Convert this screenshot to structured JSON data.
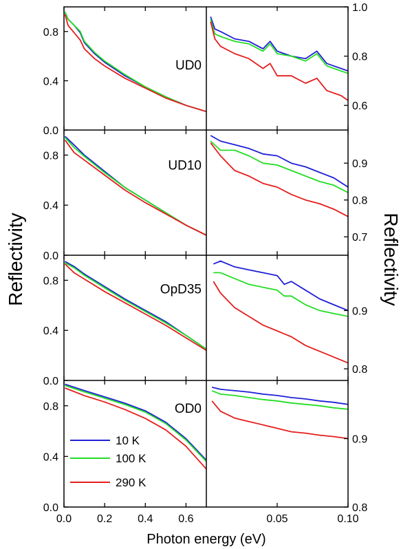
{
  "chart_data": {
    "type": "line",
    "ylabel_left": "Reflectivity",
    "ylabel_right": "Reflectivity",
    "xlabel": "Photon energy (eV)",
    "legend": {
      "position": "bottom-left of lowest left panel",
      "entries": [
        {
          "name": " 10 K",
          "color": "#1f1fd6"
        },
        {
          "name": "100 K",
          "color": "#22dd22"
        },
        {
          "name": "290 K",
          "color": "#e51c1c"
        }
      ]
    },
    "left_axis": {
      "xlim": [
        0.0,
        0.7
      ],
      "xticks": [
        0.0,
        0.2,
        0.4,
        0.6
      ],
      "xtick_labels": [
        "0.0",
        "0.2",
        "0.4",
        "0.6"
      ]
    },
    "right_axis": {
      "xlim": [
        0.0,
        0.1
      ],
      "xticks": [
        0.05,
        0.1
      ],
      "xtick_labels": [
        "0.05",
        "0.10"
      ]
    },
    "panels": [
      {
        "label": "UD0",
        "left": {
          "ylim": [
            0.0,
            1.0
          ],
          "yticks": [
            0.0,
            0.4,
            0.8
          ],
          "ytick_labels": [
            "0.0",
            "0.4",
            "0.8"
          ],
          "series": [
            {
              "color": "#1f1fd6",
              "x": [
                0.005,
                0.02,
                0.05,
                0.08,
                0.1,
                0.15,
                0.2,
                0.3,
                0.4,
                0.5,
                0.6,
                0.7
              ],
              "y": [
                0.96,
                0.9,
                0.85,
                0.79,
                0.71,
                0.62,
                0.55,
                0.44,
                0.35,
                0.27,
                0.2,
                0.15
              ]
            },
            {
              "color": "#22dd22",
              "x": [
                0.005,
                0.02,
                0.05,
                0.08,
                0.1,
                0.15,
                0.2,
                0.3,
                0.4,
                0.5,
                0.6,
                0.7
              ],
              "y": [
                0.96,
                0.9,
                0.85,
                0.8,
                0.72,
                0.63,
                0.56,
                0.45,
                0.35,
                0.27,
                0.2,
                0.15
              ]
            },
            {
              "color": "#e51c1c",
              "x": [
                0.005,
                0.02,
                0.05,
                0.08,
                0.1,
                0.15,
                0.2,
                0.3,
                0.4,
                0.5,
                0.6,
                0.7
              ],
              "y": [
                0.94,
                0.85,
                0.79,
                0.73,
                0.66,
                0.58,
                0.52,
                0.42,
                0.34,
                0.26,
                0.2,
                0.15
              ]
            }
          ]
        },
        "right": {
          "ylim": [
            0.5,
            1.0
          ],
          "yticks": [
            0.6,
            0.8,
            1.0
          ],
          "ytick_labels": [
            "0.6",
            "0.8",
            "1.0"
          ],
          "series": [
            {
              "color": "#1f1fd6",
              "x": [
                0.003,
                0.006,
                0.01,
                0.02,
                0.03,
                0.04,
                0.045,
                0.05,
                0.06,
                0.07,
                0.078,
                0.085,
                0.095,
                0.1
              ],
              "y": [
                0.96,
                0.91,
                0.9,
                0.87,
                0.86,
                0.83,
                0.86,
                0.82,
                0.8,
                0.79,
                0.82,
                0.77,
                0.75,
                0.74
              ]
            },
            {
              "color": "#22dd22",
              "x": [
                0.003,
                0.006,
                0.01,
                0.02,
                0.03,
                0.04,
                0.045,
                0.05,
                0.06,
                0.07,
                0.078,
                0.085,
                0.095,
                0.1
              ],
              "y": [
                0.95,
                0.89,
                0.88,
                0.86,
                0.85,
                0.82,
                0.85,
                0.81,
                0.8,
                0.78,
                0.81,
                0.76,
                0.74,
                0.73
              ]
            },
            {
              "color": "#e51c1c",
              "x": [
                0.003,
                0.006,
                0.01,
                0.02,
                0.03,
                0.04,
                0.045,
                0.05,
                0.06,
                0.07,
                0.078,
                0.085,
                0.095,
                0.1
              ],
              "y": [
                0.94,
                0.87,
                0.84,
                0.81,
                0.79,
                0.75,
                0.77,
                0.72,
                0.72,
                0.69,
                0.71,
                0.66,
                0.64,
                0.62
              ]
            }
          ]
        }
      },
      {
        "label": "UD10",
        "left": {
          "ylim": [
            0.0,
            1.0
          ],
          "yticks": [
            0.0,
            0.4,
            0.8
          ],
          "ytick_labels": [
            "0.0",
            "0.4",
            "0.8"
          ],
          "series": [
            {
              "color": "#1f1fd6",
              "x": [
                0.005,
                0.05,
                0.1,
                0.2,
                0.3,
                0.4,
                0.5,
                0.6,
                0.7
              ],
              "y": [
                0.95,
                0.88,
                0.8,
                0.67,
                0.54,
                0.44,
                0.34,
                0.24,
                0.16
              ]
            },
            {
              "color": "#22dd22",
              "x": [
                0.005,
                0.05,
                0.1,
                0.2,
                0.3,
                0.4,
                0.5,
                0.6,
                0.7
              ],
              "y": [
                0.94,
                0.86,
                0.79,
                0.66,
                0.54,
                0.44,
                0.34,
                0.24,
                0.16
              ]
            },
            {
              "color": "#e51c1c",
              "x": [
                0.005,
                0.05,
                0.1,
                0.2,
                0.3,
                0.4,
                0.5,
                0.6,
                0.7
              ],
              "y": [
                0.92,
                0.82,
                0.76,
                0.64,
                0.52,
                0.42,
                0.33,
                0.24,
                0.16
              ]
            }
          ]
        },
        "right": {
          "ylim": [
            0.65,
            0.99
          ],
          "yticks": [
            0.7,
            0.8,
            0.9
          ],
          "ytick_labels": [
            "0.7",
            "0.8",
            "0.9"
          ],
          "series": [
            {
              "color": "#1f1fd6",
              "x": [
                0.003,
                0.01,
                0.02,
                0.03,
                0.04,
                0.05,
                0.06,
                0.07,
                0.08,
                0.09,
                0.1
              ],
              "y": [
                0.975,
                0.96,
                0.95,
                0.94,
                0.925,
                0.92,
                0.9,
                0.89,
                0.875,
                0.86,
                0.835
              ]
            },
            {
              "color": "#22dd22",
              "x": [
                0.003,
                0.01,
                0.02,
                0.03,
                0.04,
                0.05,
                0.06,
                0.07,
                0.08,
                0.09,
                0.1
              ],
              "y": [
                0.96,
                0.935,
                0.935,
                0.92,
                0.9,
                0.895,
                0.88,
                0.865,
                0.85,
                0.84,
                0.82
              ]
            },
            {
              "color": "#e51c1c",
              "x": [
                0.003,
                0.01,
                0.02,
                0.03,
                0.04,
                0.05,
                0.06,
                0.07,
                0.08,
                0.09,
                0.1
              ],
              "y": [
                0.955,
                0.92,
                0.88,
                0.865,
                0.845,
                0.835,
                0.815,
                0.8,
                0.79,
                0.775,
                0.755
              ]
            }
          ]
        }
      },
      {
        "label": "OpD35",
        "left": {
          "ylim": [
            0.0,
            1.0
          ],
          "yticks": [
            0.0,
            0.4,
            0.8
          ],
          "ytick_labels": [
            "0.0",
            "0.4",
            "0.8"
          ],
          "series": [
            {
              "color": "#1f1fd6",
              "x": [
                0.005,
                0.05,
                0.1,
                0.2,
                0.3,
                0.4,
                0.5,
                0.6,
                0.7
              ],
              "y": [
                0.95,
                0.91,
                0.85,
                0.75,
                0.65,
                0.56,
                0.47,
                0.36,
                0.25
              ]
            },
            {
              "color": "#22dd22",
              "x": [
                0.005,
                0.05,
                0.1,
                0.2,
                0.3,
                0.4,
                0.5,
                0.6,
                0.7
              ],
              "y": [
                0.94,
                0.9,
                0.84,
                0.74,
                0.64,
                0.55,
                0.46,
                0.36,
                0.25
              ]
            },
            {
              "color": "#e51c1c",
              "x": [
                0.005,
                0.05,
                0.1,
                0.2,
                0.3,
                0.4,
                0.5,
                0.6,
                0.7
              ],
              "y": [
                0.93,
                0.86,
                0.81,
                0.71,
                0.62,
                0.53,
                0.44,
                0.34,
                0.24
              ]
            }
          ]
        },
        "right": {
          "ylim": [
            0.78,
            0.995
          ],
          "yticks": [
            0.8,
            0.9
          ],
          "ytick_labels": [
            "0.8",
            "0.9"
          ],
          "series": [
            {
              "color": "#1f1fd6",
              "x": [
                0.005,
                0.01,
                0.02,
                0.03,
                0.04,
                0.05,
                0.055,
                0.06,
                0.07,
                0.08,
                0.09,
                0.1
              ],
              "y": [
                0.98,
                0.985,
                0.975,
                0.97,
                0.965,
                0.96,
                0.945,
                0.95,
                0.935,
                0.92,
                0.91,
                0.9
              ]
            },
            {
              "color": "#22dd22",
              "x": [
                0.005,
                0.01,
                0.02,
                0.03,
                0.04,
                0.05,
                0.055,
                0.06,
                0.07,
                0.08,
                0.09,
                0.1
              ],
              "y": [
                0.965,
                0.965,
                0.955,
                0.945,
                0.94,
                0.935,
                0.925,
                0.925,
                0.91,
                0.9,
                0.895,
                0.89
              ]
            },
            {
              "color": "#e51c1c",
              "x": [
                0.005,
                0.01,
                0.02,
                0.03,
                0.04,
                0.05,
                0.055,
                0.06,
                0.07,
                0.08,
                0.09,
                0.1
              ],
              "y": [
                0.95,
                0.93,
                0.905,
                0.89,
                0.875,
                0.865,
                0.86,
                0.855,
                0.84,
                0.83,
                0.82,
                0.81
              ]
            }
          ]
        }
      },
      {
        "label": "OD0",
        "left": {
          "ylim": [
            0.0,
            1.0
          ],
          "yticks": [
            0.0,
            0.4,
            0.8
          ],
          "ytick_labels": [
            "0.0",
            "0.4",
            "0.8"
          ],
          "series": [
            {
              "color": "#1f1fd6",
              "x": [
                0.005,
                0.1,
                0.2,
                0.3,
                0.4,
                0.5,
                0.6,
                0.7
              ],
              "y": [
                0.97,
                0.92,
                0.87,
                0.82,
                0.76,
                0.67,
                0.54,
                0.37
              ]
            },
            {
              "color": "#22dd22",
              "x": [
                0.005,
                0.1,
                0.2,
                0.3,
                0.4,
                0.5,
                0.6,
                0.7
              ],
              "y": [
                0.96,
                0.91,
                0.86,
                0.81,
                0.75,
                0.66,
                0.53,
                0.36
              ]
            },
            {
              "color": "#e51c1c",
              "x": [
                0.005,
                0.1,
                0.2,
                0.3,
                0.4,
                0.5,
                0.6,
                0.7
              ],
              "y": [
                0.94,
                0.88,
                0.83,
                0.77,
                0.7,
                0.61,
                0.48,
                0.3
              ]
            }
          ]
        },
        "right": {
          "ylim": [
            0.8,
            0.985
          ],
          "yticks": [
            0.8,
            0.9
          ],
          "ytick_labels": [
            "0.8",
            "0.9"
          ],
          "series": [
            {
              "color": "#1f1fd6",
              "x": [
                0.004,
                0.01,
                0.02,
                0.03,
                0.04,
                0.05,
                0.06,
                0.07,
                0.08,
                0.09,
                0.1
              ],
              "y": [
                0.975,
                0.972,
                0.97,
                0.968,
                0.965,
                0.963,
                0.96,
                0.958,
                0.955,
                0.953,
                0.95
              ]
            },
            {
              "color": "#22dd22",
              "x": [
                0.004,
                0.01,
                0.02,
                0.03,
                0.04,
                0.05,
                0.06,
                0.07,
                0.08,
                0.09,
                0.1
              ],
              "y": [
                0.97,
                0.965,
                0.963,
                0.96,
                0.957,
                0.955,
                0.952,
                0.95,
                0.948,
                0.945,
                0.943
              ]
            },
            {
              "color": "#e51c1c",
              "x": [
                0.004,
                0.01,
                0.02,
                0.03,
                0.04,
                0.05,
                0.06,
                0.07,
                0.08,
                0.09,
                0.1
              ],
              "y": [
                0.955,
                0.94,
                0.93,
                0.925,
                0.92,
                0.915,
                0.91,
                0.908,
                0.905,
                0.903,
                0.9
              ]
            }
          ]
        }
      }
    ]
  }
}
